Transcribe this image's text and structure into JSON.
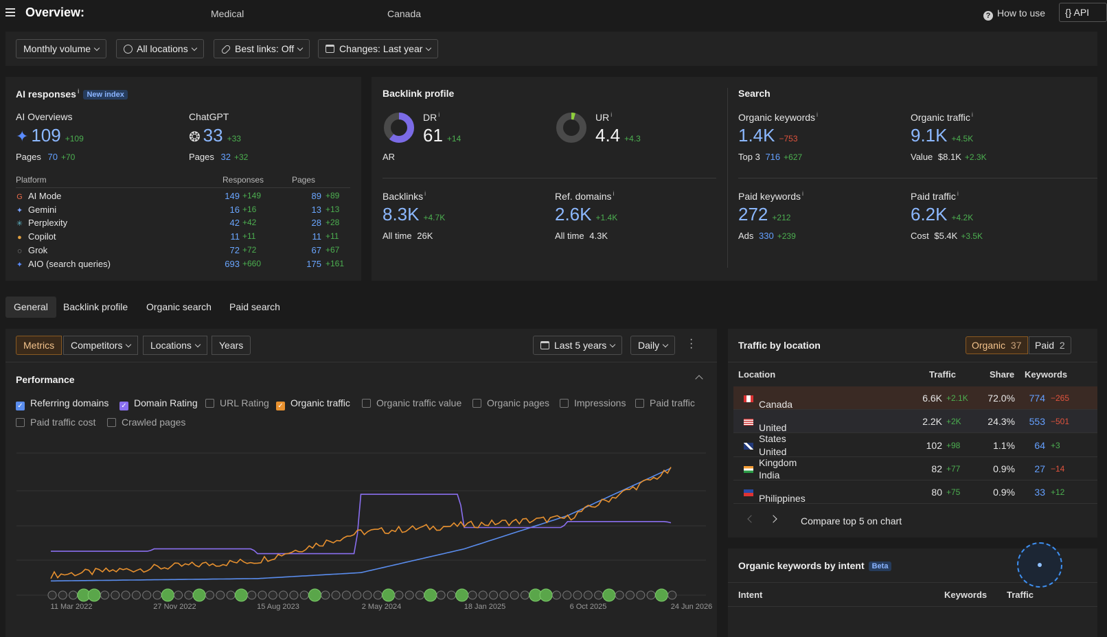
{
  "header": {
    "title": "Overview:",
    "crumb1": "Medical",
    "crumb2": "Canada",
    "how_to_use": "How to use",
    "api": "API"
  },
  "filters": {
    "volume": "Monthly volume",
    "locations": "All locations",
    "best_links": "Best links: Off",
    "changes": "Changes: Last year"
  },
  "ai": {
    "title": "AI responses",
    "info": "i",
    "badge": "New index",
    "overviews_label": "AI Overviews",
    "overviews_value": "109",
    "overviews_delta": "+109",
    "overviews_pages_label": "Pages",
    "overviews_pages": "70",
    "overviews_pages_delta": "+70",
    "chatgpt_label": "ChatGPT",
    "chatgpt_value": "33",
    "chatgpt_delta": "+33",
    "chatgpt_pages_label": "Pages",
    "chatgpt_pages": "32",
    "chatgpt_pages_delta": "+32",
    "col_platform": "Platform",
    "col_responses": "Responses",
    "col_pages": "Pages",
    "rows": [
      {
        "name": "AI Mode",
        "icon": "G",
        "resp": "149",
        "resp_d": "+149",
        "pages": "89",
        "pages_d": "+89"
      },
      {
        "name": "Gemini",
        "icon": "✦",
        "resp": "16",
        "resp_d": "+16",
        "pages": "13",
        "pages_d": "+13"
      },
      {
        "name": "Perplexity",
        "icon": "✳",
        "resp": "42",
        "resp_d": "+42",
        "pages": "28",
        "pages_d": "+28"
      },
      {
        "name": "Copilot",
        "icon": "●",
        "resp": "11",
        "resp_d": "+11",
        "pages": "11",
        "pages_d": "+11"
      },
      {
        "name": "Grok",
        "icon": "◌",
        "resp": "72",
        "resp_d": "+72",
        "pages": "67",
        "pages_d": "+67"
      },
      {
        "name": "AIO (search queries)",
        "icon": "✦",
        "resp": "693",
        "resp_d": "+660",
        "pages": "175",
        "pages_d": "+161"
      }
    ]
  },
  "backlink": {
    "title": "Backlink profile",
    "dr_label": "DR",
    "dr_value": "61",
    "dr_delta": "+14",
    "ar_label": "AR",
    "ur_label": "UR",
    "ur_value": "4.4",
    "ur_delta": "+4.3",
    "backlinks_label": "Backlinks",
    "backlinks_value": "8.3K",
    "backlinks_delta": "+4.7K",
    "backlinks_all_label": "All time",
    "backlinks_all": "26K",
    "ref_label": "Ref. domains",
    "ref_value": "2.6K",
    "ref_delta": "+1.4K",
    "ref_all_label": "All time",
    "ref_all": "4.3K"
  },
  "search": {
    "title": "Search",
    "ok_label": "Organic keywords",
    "ok_value": "1.4K",
    "ok_delta": "−753",
    "ok_top3_label": "Top 3",
    "ok_top3": "716",
    "ok_top3_delta": "+627",
    "ot_label": "Organic traffic",
    "ot_value": "9.1K",
    "ot_delta": "+4.5K",
    "ot_value_label": "Value",
    "ot_value_amt": "$8.1K",
    "ot_value_delta": "+2.3K",
    "pk_label": "Paid keywords",
    "pk_value": "272",
    "pk_delta": "+212",
    "pk_ads_label": "Ads",
    "pk_ads": "330",
    "pk_ads_delta": "+239",
    "pt_label": "Paid traffic",
    "pt_value": "6.2K",
    "pt_delta": "+4.2K",
    "pt_cost_label": "Cost",
    "pt_cost": "$5.4K",
    "pt_cost_delta": "+3.5K"
  },
  "tabs": [
    "General",
    "Backlink profile",
    "Organic search",
    "Paid search"
  ],
  "chart_panel": {
    "segments": [
      "Metrics",
      "Competitors",
      "Locations",
      "Years"
    ],
    "range": "Last 5 years",
    "granularity": "Daily",
    "performance": "Performance",
    "checkboxes": [
      {
        "label": "Referring domains",
        "on": true,
        "color": "#5a8dee"
      },
      {
        "label": "Domain Rating",
        "on": true,
        "color": "#8a6ff0"
      },
      {
        "label": "URL Rating",
        "on": false
      },
      {
        "label": "Organic traffic",
        "on": true,
        "color": "#e8912f"
      },
      {
        "label": "Organic traffic value",
        "on": false
      },
      {
        "label": "Organic pages",
        "on": false
      },
      {
        "label": "Impressions",
        "on": false
      },
      {
        "label": "Paid traffic",
        "on": false
      },
      {
        "label": "Paid traffic cost",
        "on": false
      },
      {
        "label": "Crawled pages",
        "on": false
      }
    ],
    "x_labels": [
      "11 Mar 2022",
      "27 Nov 2022",
      "15 Aug 2023",
      "2 May 2024",
      "18 Jan 2025",
      "6 Oct 2025",
      "24 Jun 2026"
    ]
  },
  "chart_data": {
    "type": "line",
    "x": [
      "11 Mar 2022",
      "27 Nov 2022",
      "15 Aug 2023",
      "2 May 2024",
      "18 Jan 2025",
      "6 Oct 2025",
      "24 Jun 2026"
    ],
    "series": [
      {
        "name": "Referring domains",
        "color": "#5a8dee",
        "values": [
          0.05,
          0.06,
          0.07,
          0.12,
          0.32,
          0.6,
          1.0
        ]
      },
      {
        "name": "Domain Rating",
        "color": "#8a6ff0",
        "values": [
          0.3,
          0.32,
          0.28,
          0.78,
          0.5,
          0.55,
          0.54
        ]
      },
      {
        "name": "Organic traffic",
        "color": "#e8912f",
        "values": [
          0.1,
          0.16,
          0.22,
          0.46,
          0.52,
          0.58,
          0.98
        ]
      }
    ]
  },
  "traffic_by_location": {
    "title": "Traffic by location",
    "organic_label": "Organic",
    "organic_count": "37",
    "paid_label": "Paid",
    "paid_count": "2",
    "col_location": "Location",
    "col_traffic": "Traffic",
    "col_share": "Share",
    "col_keywords": "Keywords",
    "rows": [
      {
        "country": "Canada",
        "traffic": "6.6K",
        "traffic_d": "+2.1K",
        "share": "72.0%",
        "kw": "774",
        "kw_d": "−265",
        "kw_neg": true
      },
      {
        "country": "United States",
        "traffic": "2.2K",
        "traffic_d": "+2K",
        "share": "24.3%",
        "kw": "553",
        "kw_d": "−501",
        "kw_neg": true
      },
      {
        "country": "United Kingdom",
        "traffic": "102",
        "traffic_d": "+98",
        "share": "1.1%",
        "kw": "64",
        "kw_d": "+3",
        "kw_neg": false
      },
      {
        "country": "India",
        "traffic": "82",
        "traffic_d": "+77",
        "share": "0.9%",
        "kw": "27",
        "kw_d": "−14",
        "kw_neg": true
      },
      {
        "country": "Philippines",
        "traffic": "80",
        "traffic_d": "+75",
        "share": "0.9%",
        "kw": "33",
        "kw_d": "+12",
        "kw_neg": false
      }
    ],
    "compare": "Compare top 5 on chart"
  },
  "intent": {
    "title": "Organic keywords by intent",
    "badge": "Beta",
    "col_intent": "Intent",
    "col_keywords": "Keywords",
    "col_traffic": "Traffic"
  }
}
